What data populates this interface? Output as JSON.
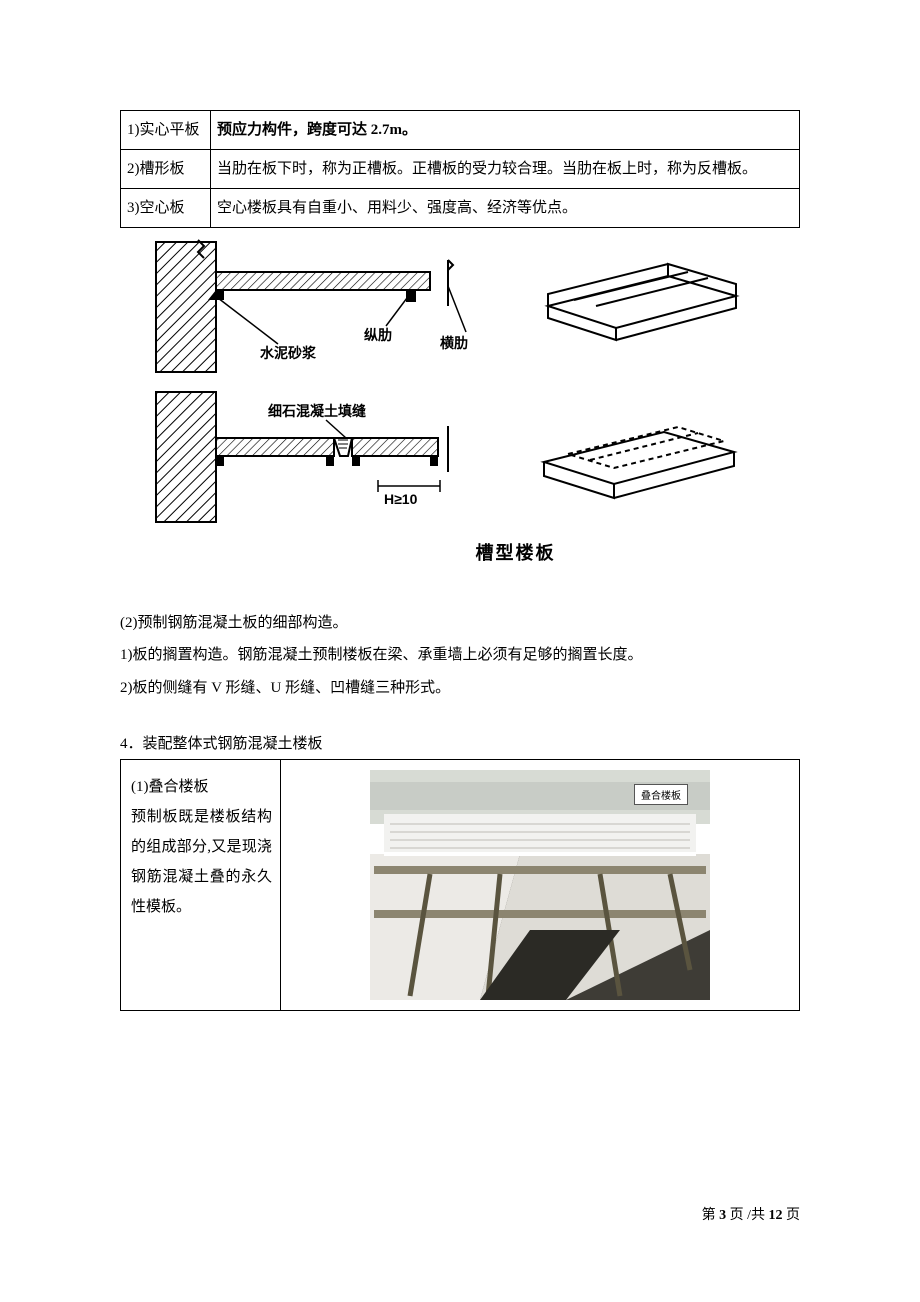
{
  "table1": {
    "rows": [
      {
        "label": "1)实心平板",
        "desc": "预应力构件，跨度可达 2.7m。",
        "desc_bold": true
      },
      {
        "label": "2)槽形板",
        "desc": "当肋在板下时，称为正槽板。正槽板的受力较合理。当肋在板上时，称为反槽板。",
        "desc_bold": false
      },
      {
        "label": "3)空心板",
        "desc": "空心楼板具有自重小、用料少、强度高、经济等优点。",
        "desc_bold": false
      }
    ]
  },
  "diagram": {
    "labels": {
      "mortar": "水泥砂浆",
      "long_rib": "纵肋",
      "cross_rib": "横肋",
      "fine_concrete": "细石混凝土填缝",
      "h_note": "H≥10"
    },
    "caption": "槽型楼板",
    "colors": {
      "stroke": "#000000",
      "hatch": "#000000",
      "bg": "#ffffff"
    }
  },
  "body": {
    "p1": "(2)预制钢筋混凝土板的细部构造。",
    "p2": "1)板的搁置构造。钢筋混凝土预制楼板在梁、承重墙上必须有足够的搁置长度。",
    "p3": "2)板的侧缝有 V 形缝、U 形缝、凹槽缝三种形式。"
  },
  "section4": {
    "title": "4．装配整体式钢筋混凝土楼板",
    "cell_title": "(1)叠合楼板",
    "cell_text": "预制板既是楼板结构的组成部分,又是现浇钢筋混凝土叠的永久性模板。",
    "photo_label": "叠合楼板",
    "photo_colors": {
      "sky": "#d7dbd4",
      "wall": "#e9e9e7",
      "slab_light": "#f2f2f0",
      "slab_shadow": "#b9b8b4",
      "frame": "#6d6550",
      "dark": "#3a3a34"
    }
  },
  "footer": {
    "prefix": "第 ",
    "page": "3",
    "mid": " 页  /共 ",
    "total": "12",
    "suffix": " 页"
  }
}
